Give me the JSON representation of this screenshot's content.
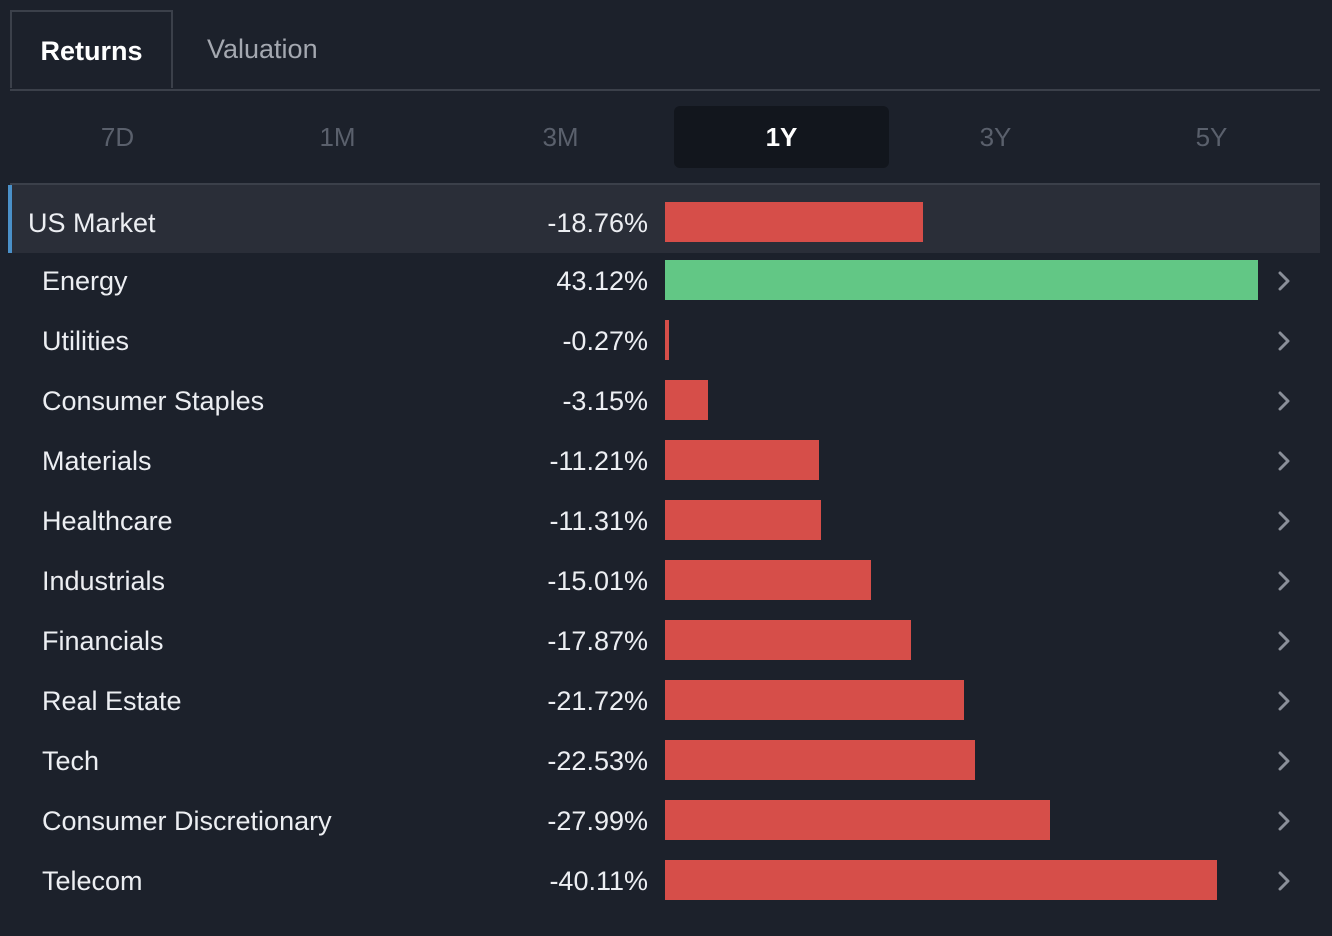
{
  "tabs": [
    {
      "label": "Returns",
      "active": true
    },
    {
      "label": "Valuation",
      "active": false
    }
  ],
  "periods": [
    {
      "label": "7D",
      "active": false
    },
    {
      "label": "1M",
      "active": false
    },
    {
      "label": "3M",
      "active": false
    },
    {
      "label": "1Y",
      "active": true
    },
    {
      "label": "3Y",
      "active": false
    },
    {
      "label": "5Y",
      "active": false
    }
  ],
  "colors": {
    "negative": "#d64e49",
    "positive": "#62c785",
    "accent": "#4a90c8"
  },
  "chart_data": {
    "type": "bar",
    "orientation": "horizontal",
    "max_abs_value": 43.12,
    "rows": [
      {
        "name": "US Market",
        "value": -18.76,
        "display": "-18.76%",
        "highlight": true
      },
      {
        "name": "Energy",
        "value": 43.12,
        "display": "43.12%"
      },
      {
        "name": "Utilities",
        "value": -0.27,
        "display": "-0.27%"
      },
      {
        "name": "Consumer Staples",
        "value": -3.15,
        "display": "-3.15%"
      },
      {
        "name": "Materials",
        "value": -11.21,
        "display": "-11.21%"
      },
      {
        "name": "Healthcare",
        "value": -11.31,
        "display": "-11.31%"
      },
      {
        "name": "Industrials",
        "value": -15.01,
        "display": "-15.01%"
      },
      {
        "name": "Financials",
        "value": -17.87,
        "display": "-17.87%"
      },
      {
        "name": "Real Estate",
        "value": -21.72,
        "display": "-21.72%"
      },
      {
        "name": "Tech",
        "value": -22.53,
        "display": "-22.53%"
      },
      {
        "name": "Consumer Discretionary",
        "value": -27.99,
        "display": "-27.99%"
      },
      {
        "name": "Telecom",
        "value": -40.11,
        "display": "-40.11%"
      }
    ]
  }
}
